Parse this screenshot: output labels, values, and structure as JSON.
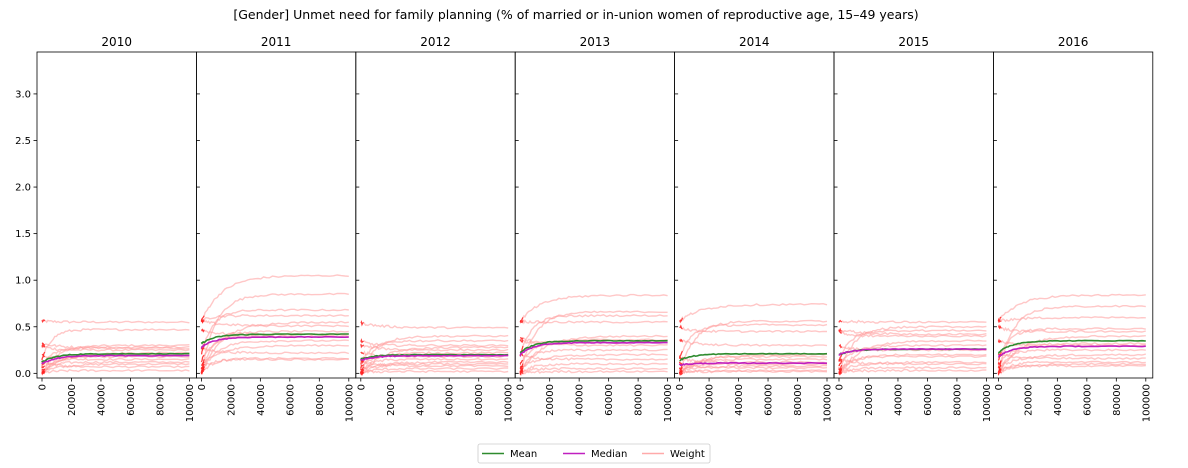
{
  "chart_data": {
    "type": "line",
    "title": "[Gender] Unmet need for family planning (% of married or in-union women of reproductive age, 15–49 years)",
    "xlim": [
      0,
      100000
    ],
    "ylim": [
      0,
      3.45
    ],
    "x_ticks": [
      0,
      20000,
      40000,
      60000,
      80000,
      100000
    ],
    "x_tick_labels": [
      "0",
      "20000",
      "40000",
      "60000",
      "80000",
      "100000"
    ],
    "y_ticks": [
      0,
      0.5,
      1.0,
      1.5,
      2.0,
      2.5,
      3.0
    ],
    "y_tick_labels": [
      "0.0",
      "0.5",
      "1.0",
      "1.5",
      "2.0",
      "2.5",
      "3.0"
    ],
    "legend": {
      "placement": "bottom-center",
      "entries": [
        {
          "label": "Mean",
          "color": "#2e8b2e"
        },
        {
          "label": "Median",
          "color": "#c020c0"
        },
        {
          "label": "Weight",
          "color": "#ffaaaa"
        }
      ]
    },
    "colors": {
      "mean": "#2e8b2e",
      "median": "#c020c0",
      "weight": "#ff9999",
      "start": "#ff0000"
    },
    "panels": [
      {
        "title": "2010",
        "mean": {
          "start": 0.12,
          "end": 0.21
        },
        "median": {
          "start": 0.1,
          "end": 0.19
        },
        "weights": [
          0.55,
          0.3,
          0.28,
          0.25,
          0.22,
          0.18,
          0.15,
          0.12,
          0.1,
          0.07,
          0.03,
          0.47,
          0.27,
          0.2
        ]
      },
      {
        "title": "2011",
        "mean": {
          "start": 0.32,
          "end": 0.42
        },
        "median": {
          "start": 0.28,
          "end": 0.39
        },
        "weights": [
          1.05,
          0.85,
          0.68,
          0.62,
          0.55,
          0.45,
          0.42,
          0.4,
          0.3,
          0.22,
          0.16,
          0.15,
          0.51,
          0.35
        ]
      },
      {
        "title": "2012",
        "mean": {
          "start": 0.15,
          "end": 0.2
        },
        "median": {
          "start": 0.14,
          "end": 0.19
        },
        "weights": [
          0.49,
          0.4,
          0.35,
          0.3,
          0.28,
          0.22,
          0.18,
          0.15,
          0.12,
          0.08,
          0.05,
          0.02,
          0.25,
          0.1
        ]
      },
      {
        "title": "2013",
        "mean": {
          "start": 0.22,
          "end": 0.35
        },
        "median": {
          "start": 0.2,
          "end": 0.33
        },
        "weights": [
          0.84,
          0.66,
          0.62,
          0.55,
          0.4,
          0.36,
          0.33,
          0.25,
          0.2,
          0.15,
          0.1,
          0.05,
          0.3,
          0.02
        ]
      },
      {
        "title": "2014",
        "mean": {
          "start": 0.14,
          "end": 0.21
        },
        "median": {
          "start": 0.09,
          "end": 0.11
        },
        "weights": [
          0.74,
          0.56,
          0.52,
          0.45,
          0.2,
          0.15,
          0.12,
          0.1,
          0.08,
          0.06,
          0.03,
          0.02,
          0.3,
          0.18
        ]
      },
      {
        "title": "2015",
        "mean": {
          "start": 0.2,
          "end": 0.26
        },
        "median": {
          "start": 0.2,
          "end": 0.26
        },
        "weights": [
          0.55,
          0.5,
          0.46,
          0.4,
          0.35,
          0.3,
          0.25,
          0.18,
          0.12,
          0.1,
          0.06,
          0.03,
          0.42,
          0.2
        ]
      },
      {
        "title": "2016",
        "mean": {
          "start": 0.22,
          "end": 0.35
        },
        "median": {
          "start": 0.18,
          "end": 0.29
        },
        "weights": [
          0.84,
          0.72,
          0.48,
          0.45,
          0.4,
          0.32,
          0.3,
          0.25,
          0.2,
          0.16,
          0.12,
          0.08,
          0.6,
          0.1
        ]
      }
    ]
  }
}
